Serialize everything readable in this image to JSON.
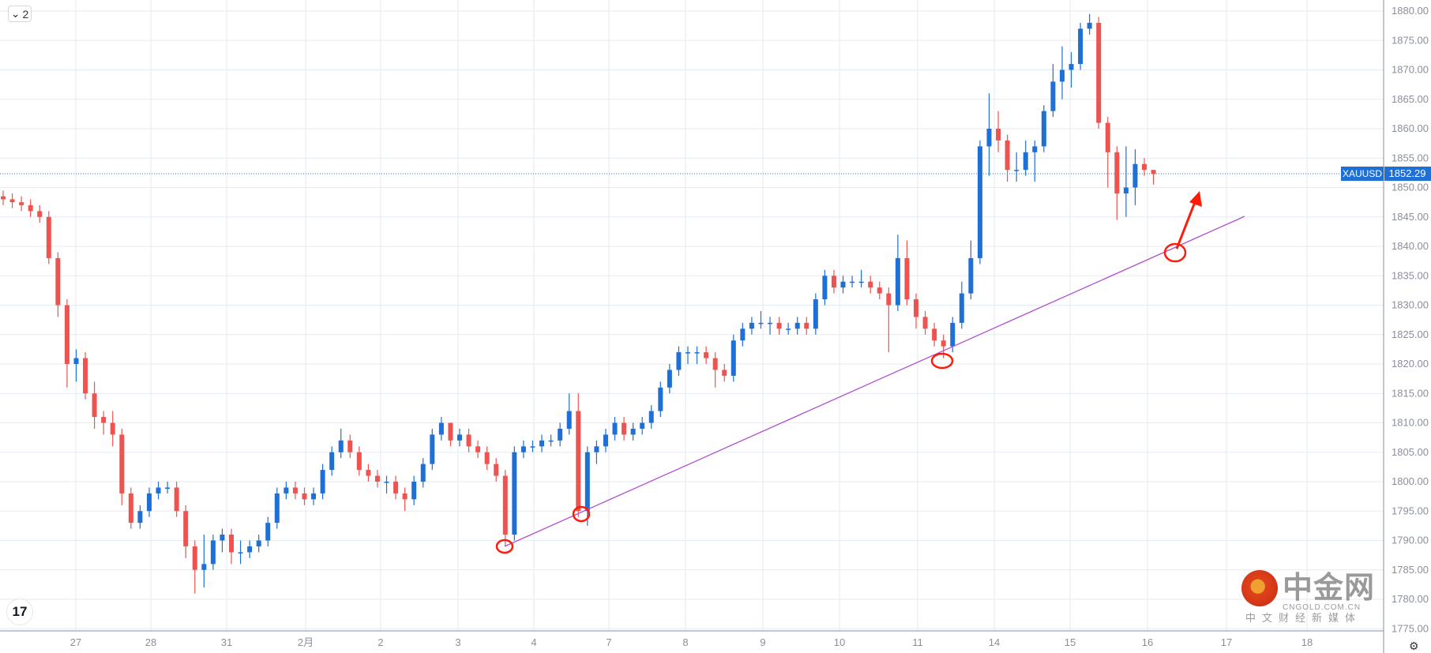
{
  "toolbar": {
    "collapse_count": "2",
    "collapse_icon": "chevron-down-icon"
  },
  "branding": {
    "tradingview_logo": "TV",
    "watermark_name": "中金网",
    "watermark_domain": "CNGOLD.COM.CN",
    "watermark_tagline": "中文财经新媒体"
  },
  "colors": {
    "up": "#1e6fd6",
    "down": "#ef5350",
    "trendline": "#b04fd0",
    "annotation": "#ff1a0a",
    "grid": "#e3ebf3",
    "price_label_bg": "#1e6fd6"
  },
  "chart_data": {
    "type": "candlestick",
    "symbol": "XAUUSD",
    "last_price": "1852.29",
    "y_ticks": [
      "1880.00",
      "1875.00",
      "1870.00",
      "1865.00",
      "1860.00",
      "1855.00",
      "1850.00",
      "1845.00",
      "1840.00",
      "1835.00",
      "1830.00",
      "1825.00",
      "1820.00",
      "1815.00",
      "1810.00",
      "1805.00",
      "1800.00",
      "1795.00",
      "1790.00",
      "1785.00",
      "1780.00",
      "1775.00"
    ],
    "ylim": [
      1775,
      1880
    ],
    "x_ticks": [
      "27",
      "28",
      "31",
      "2月",
      "2",
      "3",
      "4",
      "7",
      "8",
      "9",
      "10",
      "11",
      "14",
      "15",
      "16",
      "17",
      "18"
    ],
    "first_open": 1848.5,
    "close": [
      1848,
      1847.5,
      1847,
      1846,
      1845,
      1838,
      1830,
      1820,
      1821,
      1815,
      1811,
      1810,
      1808,
      1798,
      1793,
      1795,
      1798,
      1799,
      1799,
      1795,
      1789,
      1785,
      1786,
      1790,
      1791,
      1788,
      1788,
      1789,
      1790,
      1793,
      1798,
      1799,
      1798,
      1797,
      1798,
      1802,
      1805,
      1807,
      1805,
      1802,
      1801,
      1800,
      1800,
      1798,
      1797,
      1800,
      1803,
      1808,
      1810,
      1807,
      1808,
      1806,
      1805,
      1803,
      1801,
      1791,
      1805,
      1806,
      1806,
      1807,
      1807,
      1809,
      1812,
      1795,
      1805,
      1806,
      1808,
      1810,
      1808,
      1809,
      1810,
      1812,
      1816,
      1819,
      1822,
      1822,
      1822,
      1821,
      1819,
      1818,
      1824,
      1826,
      1827,
      1827,
      1827,
      1826,
      1826,
      1827,
      1826,
      1831,
      1835,
      1833,
      1834,
      1834,
      1834,
      1833,
      1832,
      1830,
      1838,
      1831,
      1828,
      1826,
      1824,
      1823,
      1827,
      1832,
      1838,
      1857,
      1860,
      1858,
      1853,
      1853,
      1856,
      1857,
      1863,
      1868,
      1870,
      1871,
      1877,
      1878,
      1861,
      1856,
      1849,
      1850,
      1854,
      1853,
      1852.29
    ],
    "high": [
      1849.5,
      1849,
      1848.5,
      1848,
      1847,
      1846,
      1839,
      1831,
      1822.5,
      1822,
      1817,
      1812,
      1812,
      1809,
      1799,
      1796,
      1799,
      1800,
      1800,
      1800,
      1796,
      1790,
      1791,
      1791,
      1792,
      1792,
      1790,
      1790,
      1791,
      1794,
      1799,
      1800,
      1800,
      1799,
      1799,
      1803,
      1806,
      1809,
      1808,
      1806,
      1803,
      1802,
      1801,
      1801,
      1799,
      1801,
      1804,
      1809,
      1811,
      1810,
      1809,
      1809,
      1807,
      1806,
      1804,
      1802,
      1806,
      1807,
      1807,
      1808,
      1808,
      1810,
      1815,
      1815,
      1806,
      1807,
      1809,
      1811,
      1811,
      1810,
      1811,
      1813,
      1817,
      1820,
      1823,
      1823,
      1823,
      1823,
      1822,
      1820,
      1825,
      1827,
      1828,
      1829,
      1828,
      1828,
      1827,
      1828,
      1828,
      1832,
      1836,
      1836,
      1835,
      1835,
      1836,
      1835,
      1834,
      1833,
      1842,
      1841,
      1832,
      1829,
      1827,
      1825,
      1828,
      1834,
      1841,
      1858,
      1866,
      1863,
      1859,
      1856,
      1858,
      1858,
      1864,
      1871,
      1874,
      1873,
      1878,
      1879.5,
      1879,
      1862,
      1857,
      1857,
      1856.5,
      1855,
      1853
    ],
    "low": [
      1847,
      1846.5,
      1846,
      1845,
      1844,
      1837,
      1828,
      1816,
      1817,
      1814,
      1809,
      1808,
      1806,
      1796,
      1792,
      1792,
      1794,
      1797,
      1798,
      1794,
      1787,
      1781,
      1782,
      1785,
      1788,
      1786,
      1786,
      1787,
      1788,
      1789,
      1792,
      1797,
      1797,
      1796,
      1796,
      1797,
      1801,
      1804,
      1804,
      1801,
      1800,
      1799,
      1798,
      1797,
      1795,
      1796,
      1799,
      1802,
      1807,
      1806,
      1806,
      1805,
      1804,
      1802,
      1800,
      1789,
      1790,
      1804,
      1805,
      1805,
      1806,
      1806,
      1808,
      1794,
      1792.5,
      1803,
      1805,
      1807,
      1807,
      1807,
      1808,
      1809,
      1811,
      1815,
      1818,
      1820,
      1820,
      1820,
      1816,
      1817,
      1817,
      1823,
      1825,
      1826,
      1825,
      1825,
      1825,
      1825,
      1825,
      1825,
      1830,
      1832,
      1832,
      1833,
      1833,
      1832,
      1831,
      1822,
      1829,
      1830,
      1826,
      1825,
      1823,
      1821,
      1822,
      1826,
      1831,
      1837,
      1852,
      1856,
      1851,
      1851,
      1852,
      1851,
      1856,
      1862,
      1865,
      1867,
      1870,
      1876,
      1860,
      1850,
      1844.5,
      1845,
      1847,
      1852,
      1850.5
    ]
  }
}
